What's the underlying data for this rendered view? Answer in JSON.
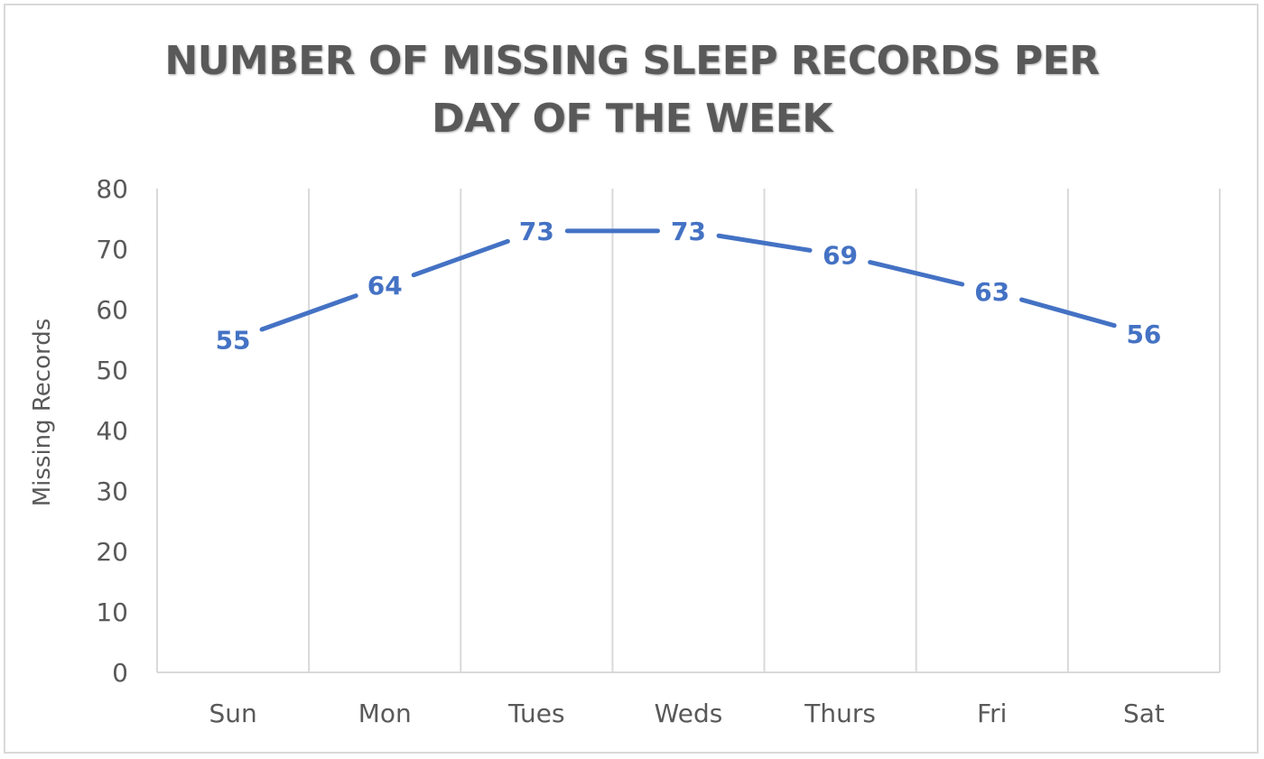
{
  "chart_data": {
    "type": "line",
    "title": "NUMBER OF MISSING SLEEP RECORDS PER DAY OF THE WEEK",
    "xlabel": "",
    "ylabel": "Missing Records",
    "categories": [
      "Sun",
      "Mon",
      "Tues",
      "Weds",
      "Thurs",
      "Fri",
      "Sat"
    ],
    "series": [
      {
        "values": [
          55,
          64,
          73,
          73,
          69,
          63,
          56
        ]
      }
    ],
    "ylim": [
      0,
      80
    ],
    "yticks": [
      0,
      10,
      20,
      30,
      40,
      50,
      60,
      70,
      80
    ],
    "data_labels": true,
    "grid": "vertical",
    "legend": "none",
    "line_color": "#4472c4",
    "text_color": "#595959",
    "grid_color": "#d9d9d9"
  }
}
